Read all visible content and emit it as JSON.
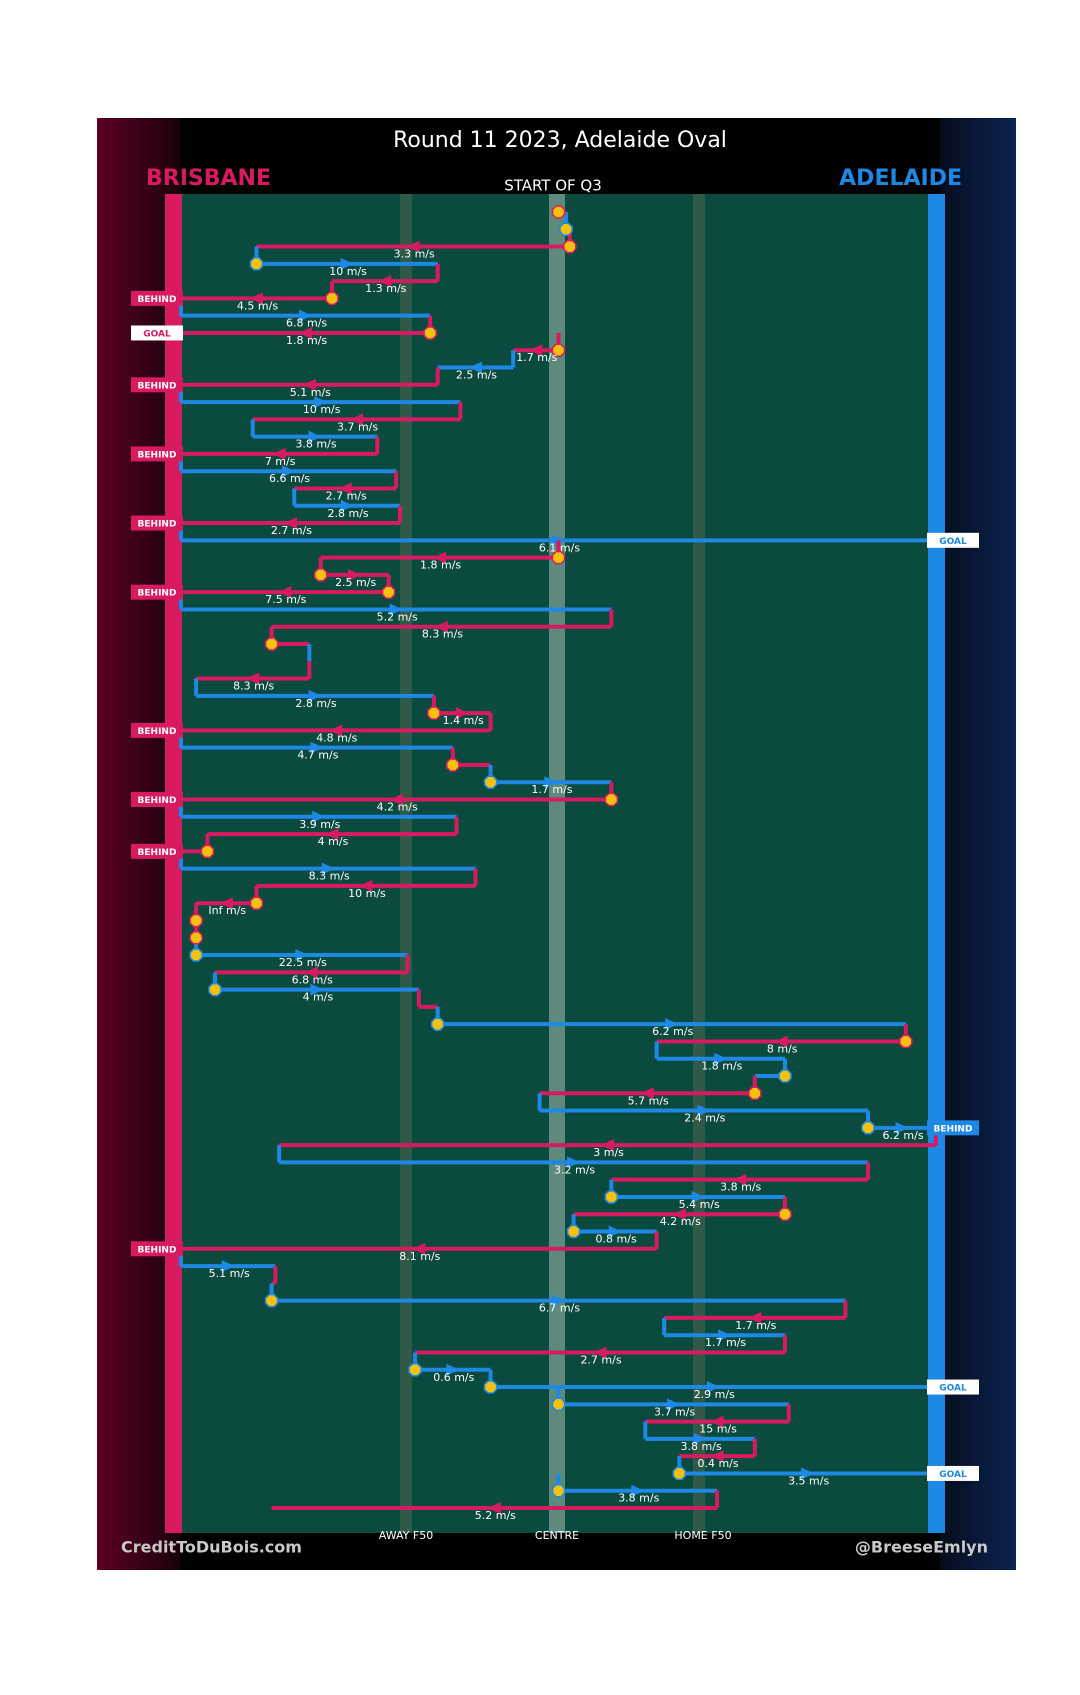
{
  "colors": {
    "brisbane": "#d81b60",
    "adelaide": "#1e88e5",
    "field": "#0b4a3e",
    "marker_fill": "#f4c20d",
    "text": "#ffffff",
    "brisbane_dark": "#5c0025",
    "adelaide_dark": "#0b2452"
  },
  "chart_data": {
    "type": "line",
    "title": "Round 11 2023, Adelaide Oval",
    "home_team": "ADELAIDE",
    "away_team": "BRISBANE",
    "subtitle": "START OF Q3",
    "footer_left": "CreditToDuBois.com",
    "footer_right": "@BreeseEmlyn",
    "x_ticks": [
      {
        "label": "AWAY F50",
        "x": 29
      },
      {
        "label": "CENTRE",
        "x": 50
      },
      {
        "label": "HOME F50",
        "x": 71
      }
    ],
    "x_range": [
      0,
      100
    ],
    "chains": [
      {
        "team": "brisbane",
        "x_from": 50,
        "x_to": 51,
        "speed": "",
        "start_marker": true
      },
      {
        "team": "adelaide",
        "x_from": 51,
        "x_to": 51.5,
        "speed": "",
        "start_marker": true
      },
      {
        "team": "brisbane",
        "x_from": 51.5,
        "x_to": 10,
        "speed": "3.3 m/s",
        "start_marker": true
      },
      {
        "team": "adelaide",
        "x_from": 10,
        "x_to": 34,
        "speed": "10 m/s",
        "start_marker": true
      },
      {
        "team": "brisbane",
        "x_from": 34,
        "x_to": 20,
        "speed": "1.3 m/s"
      },
      {
        "team": "brisbane",
        "x_from": 20,
        "x_to": 0,
        "speed": "4.5 m/s",
        "start_marker": true,
        "outcome": "BEHIND"
      },
      {
        "team": "adelaide",
        "x_from": 0,
        "x_to": 33,
        "speed": "6.8 m/s"
      },
      {
        "team": "brisbane",
        "x_from": 33,
        "x_to": 0,
        "speed": "1.8 m/s",
        "start_marker": true,
        "outcome": "GOAL"
      },
      {
        "team": "brisbane",
        "x_from": 50,
        "x_to": 44,
        "speed": "1.7 m/s",
        "start_marker": true
      },
      {
        "team": "adelaide",
        "x_from": 44,
        "x_to": 34,
        "speed": "2.5 m/s"
      },
      {
        "team": "brisbane",
        "x_from": 34,
        "x_to": 0,
        "speed": "5.1 m/s",
        "outcome": "BEHIND"
      },
      {
        "team": "adelaide",
        "x_from": 0,
        "x_to": 37,
        "speed": "10 m/s"
      },
      {
        "team": "brisbane",
        "x_from": 37,
        "x_to": 9.5,
        "speed": "3.7 m/s"
      },
      {
        "team": "adelaide",
        "x_from": 9.5,
        "x_to": 26,
        "speed": "3.8 m/s"
      },
      {
        "team": "brisbane",
        "x_from": 26,
        "x_to": 0,
        "speed": "7 m/s",
        "outcome": "BEHIND"
      },
      {
        "team": "adelaide",
        "x_from": 0,
        "x_to": 28.5,
        "speed": "6.6 m/s"
      },
      {
        "team": "brisbane",
        "x_from": 28.5,
        "x_to": 15,
        "speed": "2.7 m/s"
      },
      {
        "team": "adelaide",
        "x_from": 15,
        "x_to": 29,
        "speed": "2.8 m/s"
      },
      {
        "team": "brisbane",
        "x_from": 29,
        "x_to": 0,
        "speed": "2.7 m/s",
        "outcome": "BEHIND"
      },
      {
        "team": "adelaide",
        "x_from": 0,
        "x_to": 100,
        "speed": "6.1 m/s",
        "outcome": "GOAL"
      },
      {
        "team": "brisbane",
        "x_from": 50,
        "x_to": 18.5,
        "speed": "1.8 m/s",
        "start_marker": true
      },
      {
        "team": "brisbane",
        "x_from": 18.5,
        "x_to": 27.5,
        "speed": "2.5 m/s",
        "start_marker": true
      },
      {
        "team": "brisbane",
        "x_from": 27.5,
        "x_to": 0,
        "speed": "7.5 m/s",
        "start_marker": true,
        "outcome": "BEHIND"
      },
      {
        "team": "adelaide",
        "x_from": 0,
        "x_to": 57,
        "speed": "5.2 m/s"
      },
      {
        "team": "brisbane",
        "x_from": 57,
        "x_to": 12,
        "speed": "8.3 m/s"
      },
      {
        "team": "brisbane",
        "x_from": 12,
        "x_to": 17,
        "speed": "",
        "start_marker": true
      },
      {
        "team": "adelaide",
        "x_from": 17,
        "x_to": 17,
        "speed": ""
      },
      {
        "team": "brisbane",
        "x_from": 17,
        "x_to": 2,
        "speed": "8.3 m/s"
      },
      {
        "team": "adelaide",
        "x_from": 2,
        "x_to": 33.5,
        "speed": "2.8 m/s"
      },
      {
        "team": "brisbane",
        "x_from": 33.5,
        "x_to": 41,
        "speed": "1.4 m/s",
        "start_marker": true
      },
      {
        "team": "brisbane",
        "x_from": 41,
        "x_to": 0,
        "speed": "4.8 m/s",
        "outcome": "BEHIND"
      },
      {
        "team": "adelaide",
        "x_from": 0,
        "x_to": 36,
        "speed": "4.7 m/s"
      },
      {
        "team": "brisbane",
        "x_from": 36,
        "x_to": 41,
        "speed": "",
        "start_marker": true
      },
      {
        "team": "adelaide",
        "x_from": 41,
        "x_to": 57,
        "speed": "1.7 m/s",
        "start_marker": true
      },
      {
        "team": "brisbane",
        "x_from": 57,
        "x_to": 0,
        "speed": "4.2 m/s",
        "start_marker": true,
        "outcome": "BEHIND"
      },
      {
        "team": "adelaide",
        "x_from": 0,
        "x_to": 36.5,
        "speed": "3.9 m/s"
      },
      {
        "team": "brisbane",
        "x_from": 36.5,
        "x_to": 3.5,
        "speed": "4 m/s"
      },
      {
        "team": "brisbane",
        "x_from": 3.5,
        "x_to": 0,
        "speed": "",
        "start_marker": true,
        "outcome": "BEHIND"
      },
      {
        "team": "adelaide",
        "x_from": 0,
        "x_to": 39,
        "speed": "8.3 m/s"
      },
      {
        "team": "brisbane",
        "x_from": 39,
        "x_to": 10,
        "speed": "10 m/s"
      },
      {
        "team": "brisbane",
        "x_from": 10,
        "x_to": 2,
        "speed": "Inf m/s",
        "start_marker": true
      },
      {
        "team": "brisbane",
        "x_from": 2,
        "x_to": 2,
        "speed": "",
        "start_marker": true
      },
      {
        "team": "brisbane",
        "x_from": 2,
        "x_to": 2,
        "speed": "",
        "start_marker": true
      },
      {
        "team": "adelaide",
        "x_from": 2,
        "x_to": 30,
        "speed": "22.5 m/s",
        "start_marker": true
      },
      {
        "team": "brisbane",
        "x_from": 30,
        "x_to": 4.5,
        "speed": "6.8 m/s"
      },
      {
        "team": "adelaide",
        "x_from": 4.5,
        "x_to": 31.5,
        "speed": "4 m/s",
        "start_marker": true
      },
      {
        "team": "brisbane",
        "x_from": 31.5,
        "x_to": 34,
        "speed": ""
      },
      {
        "team": "adelaide",
        "x_from": 34,
        "x_to": 96,
        "speed": "6.2 m/s",
        "start_marker": true
      },
      {
        "team": "brisbane",
        "x_from": 96,
        "x_to": 63,
        "speed": "8 m/s",
        "start_marker": true
      },
      {
        "team": "adelaide",
        "x_from": 63,
        "x_to": 80,
        "speed": "1.8 m/s"
      },
      {
        "team": "adelaide",
        "x_from": 80,
        "x_to": 76,
        "speed": "",
        "start_marker": true
      },
      {
        "team": "brisbane",
        "x_from": 76,
        "x_to": 47.5,
        "speed": "5.7 m/s",
        "start_marker": true
      },
      {
        "team": "adelaide",
        "x_from": 47.5,
        "x_to": 91,
        "speed": "2.4 m/s"
      },
      {
        "team": "adelaide",
        "x_from": 91,
        "x_to": 100,
        "speed": "6.2 m/s",
        "start_marker": true,
        "outcome": "BEHIND"
      },
      {
        "team": "brisbane",
        "x_from": 100,
        "x_to": 13,
        "speed": "3 m/s"
      },
      {
        "team": "adelaide",
        "x_from": 13,
        "x_to": 91,
        "speed": "3.2 m/s"
      },
      {
        "team": "brisbane",
        "x_from": 91,
        "x_to": 57,
        "speed": "3.8 m/s"
      },
      {
        "team": "adelaide",
        "x_from": 57,
        "x_to": 80,
        "speed": "5.4 m/s",
        "start_marker": true
      },
      {
        "team": "brisbane",
        "x_from": 80,
        "x_to": 52,
        "speed": "4.2 m/s",
        "start_marker": true
      },
      {
        "team": "adelaide",
        "x_from": 52,
        "x_to": 63,
        "speed": "0.8 m/s",
        "start_marker": true
      },
      {
        "team": "brisbane",
        "x_from": 63,
        "x_to": 0,
        "speed": "8.1 m/s",
        "outcome": "BEHIND"
      },
      {
        "team": "adelaide",
        "x_from": 0,
        "x_to": 12.5,
        "speed": "5.1 m/s"
      },
      {
        "team": "brisbane",
        "x_from": 12.5,
        "x_to": 12,
        "speed": ""
      },
      {
        "team": "adelaide",
        "x_from": 12,
        "x_to": 88,
        "speed": "6.7 m/s",
        "start_marker": true
      },
      {
        "team": "brisbane",
        "x_from": 88,
        "x_to": 64,
        "speed": "1.7 m/s"
      },
      {
        "team": "adelaide",
        "x_from": 64,
        "x_to": 80,
        "speed": "1.7 m/s"
      },
      {
        "team": "brisbane",
        "x_from": 80,
        "x_to": 31,
        "speed": "2.7 m/s"
      },
      {
        "team": "adelaide",
        "x_from": 31,
        "x_to": 41,
        "speed": "0.6 m/s",
        "start_marker": true
      },
      {
        "team": "adelaide",
        "x_from": 41,
        "x_to": 100,
        "speed": "2.9 m/s",
        "start_marker": true,
        "outcome": "GOAL"
      },
      {
        "team": "adelaide",
        "x_from": 50,
        "x_to": 80.5,
        "speed": "3.7 m/s",
        "start_marker": true
      },
      {
        "team": "brisbane",
        "x_from": 80.5,
        "x_to": 61.5,
        "speed": "15 m/s"
      },
      {
        "team": "adelaide",
        "x_from": 61.5,
        "x_to": 76,
        "speed": "3.8 m/s"
      },
      {
        "team": "brisbane",
        "x_from": 76,
        "x_to": 66,
        "speed": "0.4 m/s"
      },
      {
        "team": "adelaide",
        "x_from": 66,
        "x_to": 100,
        "speed": "3.5 m/s",
        "start_marker": true,
        "outcome": "GOAL"
      },
      {
        "team": "adelaide",
        "x_from": 50,
        "x_to": 71,
        "speed": "3.8 m/s",
        "start_marker": true
      },
      {
        "team": "brisbane",
        "x_from": 71,
        "x_to": 12,
        "speed": "5.2 m/s"
      }
    ]
  }
}
